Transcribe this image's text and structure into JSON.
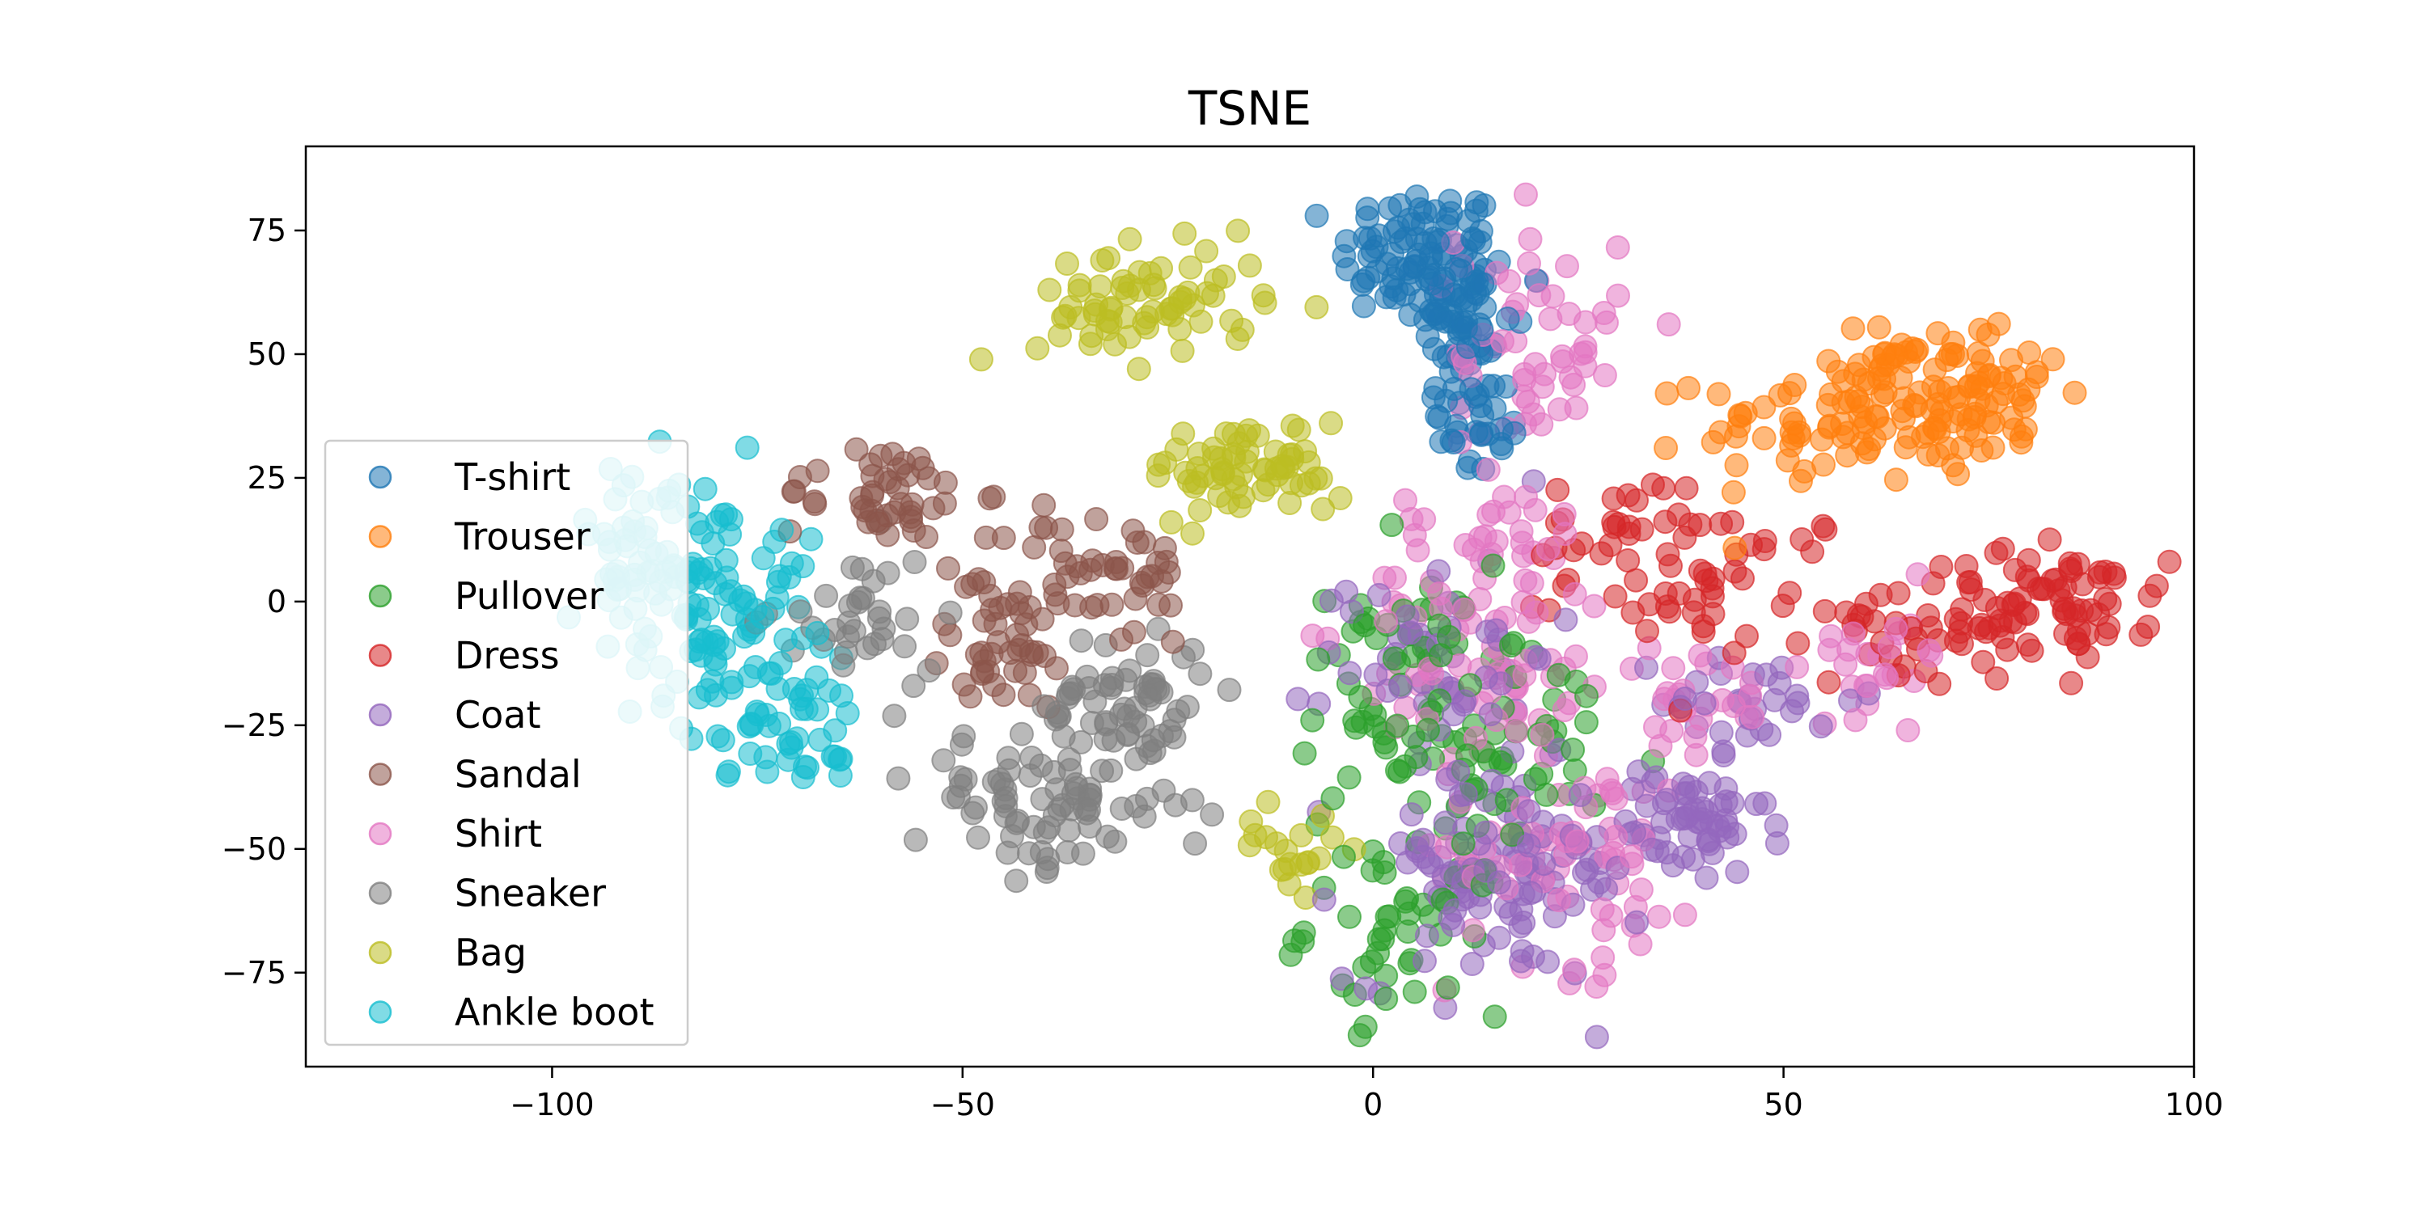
{
  "chart_data": {
    "type": "scatter",
    "title": "TSNE",
    "xlabel": "",
    "ylabel": "",
    "xlim": [
      -130,
      100
    ],
    "ylim": [
      -94,
      92
    ],
    "xticks": [
      -100,
      -50,
      0,
      50,
      100
    ],
    "yticks": [
      75,
      50,
      25,
      0,
      -25,
      -50,
      -75
    ],
    "xtick_labels": [
      "−100",
      "−50",
      "0",
      "50",
      "100"
    ],
    "ytick_labels": [
      "75",
      "50",
      "25",
      "0",
      "−25",
      "−50",
      "−75"
    ],
    "legend_position": "center-left",
    "series": [
      {
        "name": "T-shirt",
        "color": "#1f77b4",
        "clusters": [
          {
            "x": 6,
            "y": 70,
            "sx": 5,
            "sy": 7,
            "n": 90
          },
          {
            "x": 11,
            "y": 55,
            "sx": 3,
            "sy": 10,
            "n": 60
          },
          {
            "x": 13,
            "y": 35,
            "sx": 3,
            "sy": 6,
            "n": 25
          }
        ]
      },
      {
        "name": "Trouser",
        "color": "#ff7f0e",
        "clusters": [
          {
            "x": 58,
            "y": 36,
            "sx": 9,
            "sy": 6,
            "n": 90
          },
          {
            "x": 75,
            "y": 42,
            "sx": 5,
            "sy": 7,
            "n": 50
          },
          {
            "x": 66,
            "y": 50,
            "sx": 5,
            "sy": 3,
            "n": 25
          }
        ]
      },
      {
        "name": "Pullover",
        "color": "#2ca02c",
        "clusters": [
          {
            "x": 3,
            "y": -20,
            "sx": 6,
            "sy": 14,
            "n": 70
          },
          {
            "x": 4,
            "y": -65,
            "sx": 6,
            "sy": 9,
            "n": 50
          },
          {
            "x": 20,
            "y": -30,
            "sx": 8,
            "sy": 10,
            "n": 35
          }
        ]
      },
      {
        "name": "Dress",
        "color": "#d62728",
        "clusters": [
          {
            "x": 85,
            "y": 0,
            "sx": 5,
            "sy": 6,
            "n": 60
          },
          {
            "x": 68,
            "y": -5,
            "sx": 6,
            "sy": 6,
            "n": 45
          },
          {
            "x": 42,
            "y": 5,
            "sx": 9,
            "sy": 7,
            "n": 55
          },
          {
            "x": 30,
            "y": 15,
            "sx": 4,
            "sy": 5,
            "n": 20
          }
        ]
      },
      {
        "name": "Coat",
        "color": "#9467bd",
        "clusters": [
          {
            "x": 15,
            "y": -55,
            "sx": 9,
            "sy": 11,
            "n": 110
          },
          {
            "x": 38,
            "y": -45,
            "sx": 5,
            "sy": 6,
            "n": 60
          },
          {
            "x": 8,
            "y": -10,
            "sx": 7,
            "sy": 10,
            "n": 50
          },
          {
            "x": 47,
            "y": -20,
            "sx": 6,
            "sy": 5,
            "n": 30
          }
        ]
      },
      {
        "name": "Sandal",
        "color": "#8c564b",
        "clusters": [
          {
            "x": -60,
            "y": 22,
            "sx": 6,
            "sy": 5,
            "n": 45
          },
          {
            "x": -33,
            "y": 5,
            "sx": 6,
            "sy": 7,
            "n": 50
          },
          {
            "x": -45,
            "y": -10,
            "sx": 5,
            "sy": 7,
            "n": 40
          }
        ]
      },
      {
        "name": "Shirt",
        "color": "#e377c2",
        "clusters": [
          {
            "x": 14,
            "y": -5,
            "sx": 8,
            "sy": 14,
            "n": 90
          },
          {
            "x": 25,
            "y": -50,
            "sx": 8,
            "sy": 12,
            "n": 70
          },
          {
            "x": 20,
            "y": 50,
            "sx": 5,
            "sy": 14,
            "n": 60
          },
          {
            "x": 62,
            "y": -10,
            "sx": 4,
            "sy": 6,
            "n": 25
          },
          {
            "x": 40,
            "y": -20,
            "sx": 6,
            "sy": 5,
            "n": 25
          }
        ]
      },
      {
        "name": "Sneaker",
        "color": "#7f7f7f",
        "clusters": [
          {
            "x": -40,
            "y": -40,
            "sx": 8,
            "sy": 7,
            "n": 80
          },
          {
            "x": -30,
            "y": -20,
            "sx": 5,
            "sy": 8,
            "n": 60
          },
          {
            "x": -63,
            "y": -5,
            "sx": 5,
            "sy": 8,
            "n": 35
          }
        ]
      },
      {
        "name": "Bag",
        "color": "#bcbd22",
        "clusters": [
          {
            "x": -27,
            "y": 60,
            "sx": 7,
            "sy": 6,
            "n": 70
          },
          {
            "x": -15,
            "y": 27,
            "sx": 6,
            "sy": 5,
            "n": 65
          },
          {
            "x": -10,
            "y": -50,
            "sx": 3,
            "sy": 4,
            "n": 20
          }
        ]
      },
      {
        "name": "Ankle boot",
        "color": "#17becf",
        "clusters": [
          {
            "x": -80,
            "y": 0,
            "sx": 6,
            "sy": 13,
            "n": 110
          },
          {
            "x": -72,
            "y": -25,
            "sx": 5,
            "sy": 6,
            "n": 40
          },
          {
            "x": -90,
            "y": 10,
            "sx": 3,
            "sy": 10,
            "n": 40
          }
        ]
      }
    ]
  }
}
